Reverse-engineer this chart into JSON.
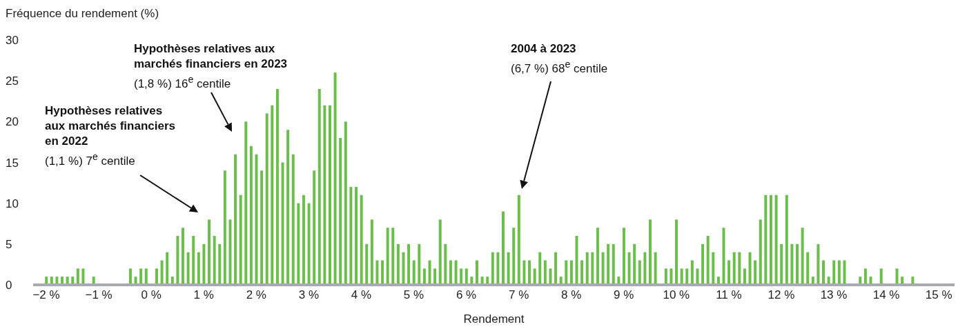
{
  "chart_data": {
    "type": "bar",
    "ylabel": "Fréquence du rendement (%)",
    "xlabel": "Rendement",
    "color": "#6abf4b",
    "x": [
      -2,
      -1.9,
      -1.8,
      -1.7,
      -1.6,
      -1.5,
      -1.4,
      -1.3,
      -1.2,
      -1.1,
      -1,
      -0.9,
      -0.8,
      -0.7,
      -0.6,
      -0.5,
      -0.4,
      -0.3,
      -0.2,
      -0.1,
      0,
      0.1,
      0.2,
      0.3,
      0.4,
      0.5,
      0.6,
      0.7,
      0.8,
      0.9,
      1,
      1.1,
      1.2,
      1.3,
      1.4,
      1.5,
      1.6,
      1.7,
      1.8,
      1.9,
      2,
      2.1,
      2.2,
      2.3,
      2.4,
      2.5,
      2.6,
      2.7,
      2.8,
      2.9,
      3,
      3.1,
      3.2,
      3.3,
      3.4,
      3.5,
      3.6,
      3.7,
      3.8,
      3.9,
      4,
      4.1,
      4.2,
      4.3,
      4.4,
      4.5,
      4.6,
      4.7,
      4.8,
      4.9,
      5,
      5.1,
      5.2,
      5.3,
      5.4,
      5.5,
      5.6,
      5.7,
      5.8,
      5.9,
      6,
      6.1,
      6.2,
      6.3,
      6.4,
      6.5,
      6.6,
      6.7,
      6.8,
      6.9,
      7,
      7.1,
      7.2,
      7.3,
      7.4,
      7.5,
      7.6,
      7.7,
      7.8,
      7.9,
      8,
      8.1,
      8.2,
      8.3,
      8.4,
      8.5,
      8.6,
      8.7,
      8.8,
      8.9,
      9,
      9.1,
      9.2,
      9.3,
      9.4,
      9.5,
      9.6,
      9.7,
      9.8,
      9.9,
      10,
      10.1,
      10.2,
      10.3,
      10.4,
      10.5,
      10.6,
      10.7,
      10.8,
      10.9,
      11,
      11.1,
      11.2,
      11.3,
      11.4,
      11.5,
      11.6,
      11.7,
      11.8,
      11.9,
      12,
      12.1,
      12.2,
      12.3,
      12.4,
      12.5,
      12.6,
      12.7,
      12.8,
      12.9,
      13,
      13.1,
      13.2,
      13.3,
      13.4,
      13.5,
      13.6,
      13.7,
      13.8,
      13.9,
      14,
      14.1,
      14.2,
      14.3,
      14.4,
      14.5
    ],
    "values": [
      1,
      1,
      1,
      1,
      1,
      1,
      2,
      2,
      null,
      1,
      null,
      null,
      null,
      null,
      null,
      null,
      2,
      1,
      2,
      2,
      null,
      2,
      3,
      4,
      1,
      6,
      7,
      4,
      6,
      4,
      5,
      8,
      6,
      5,
      14,
      8,
      16,
      11,
      20,
      17,
      16,
      14,
      21,
      22,
      24,
      15,
      19,
      16,
      10,
      11,
      10,
      14,
      24,
      22,
      22,
      26,
      18,
      20,
      12,
      12,
      11,
      5,
      8,
      3,
      3,
      7,
      7,
      5,
      4,
      5,
      3,
      5,
      2,
      3,
      2,
      8,
      5,
      3,
      3,
      2,
      2,
      1,
      3,
      1,
      1,
      4,
      4,
      9,
      4,
      7,
      11,
      3,
      3,
      2,
      4,
      3,
      2,
      4,
      1,
      3,
      3,
      6,
      3,
      4,
      4,
      7,
      4,
      5,
      5,
      1,
      7,
      4,
      5,
      3,
      4,
      8,
      4,
      null,
      2,
      2,
      8,
      2,
      2,
      3,
      2,
      5,
      6,
      4,
      1,
      7,
      3,
      4,
      4,
      2,
      4,
      3,
      8,
      11,
      11,
      11,
      5,
      11,
      5,
      5,
      7,
      4,
      1,
      5,
      3,
      1,
      3,
      3,
      3,
      null,
      null,
      1,
      2,
      1,
      null,
      2,
      null,
      null,
      2,
      1,
      null,
      1
    ],
    "xlim": [
      -2.25,
      15.3
    ],
    "xticks": [
      {
        "value": -2,
        "label": "−2 %"
      },
      {
        "value": -1,
        "label": "−1 %"
      },
      {
        "value": 0,
        "label": "0 %"
      },
      {
        "value": 1,
        "label": "1 %"
      },
      {
        "value": 2,
        "label": "2 %"
      },
      {
        "value": 3,
        "label": "3 %"
      },
      {
        "value": 4,
        "label": "4 %"
      },
      {
        "value": 5,
        "label": "5 %"
      },
      {
        "value": 6,
        "label": "6 %"
      },
      {
        "value": 7,
        "label": "7 %"
      },
      {
        "value": 8,
        "label": "8 %"
      },
      {
        "value": 9,
        "label": "9 %"
      },
      {
        "value": 10,
        "label": "10 %"
      },
      {
        "value": 11,
        "label": "11 %"
      },
      {
        "value": 12,
        "label": "12 %"
      },
      {
        "value": 13,
        "label": "13 %"
      },
      {
        "value": 14,
        "label": "14 %"
      },
      {
        "value": 15,
        "label": "15 %"
      }
    ],
    "ylim": [
      0,
      30
    ],
    "yticks": [
      0,
      5,
      10,
      15,
      20,
      25,
      30
    ],
    "annotations": [
      "Hypothèses relatives aux marchés financiers en 2022",
      "(1,1 %) 7$^{e}$ centile",
      "Hypothèses relatives aux marchés financiers en 2023",
      "(1,8 %) 16$^{e}$ centile",
      "2004 à 2023",
      "(6,7 %) 68$^{e}$ centile"
    ]
  }
}
